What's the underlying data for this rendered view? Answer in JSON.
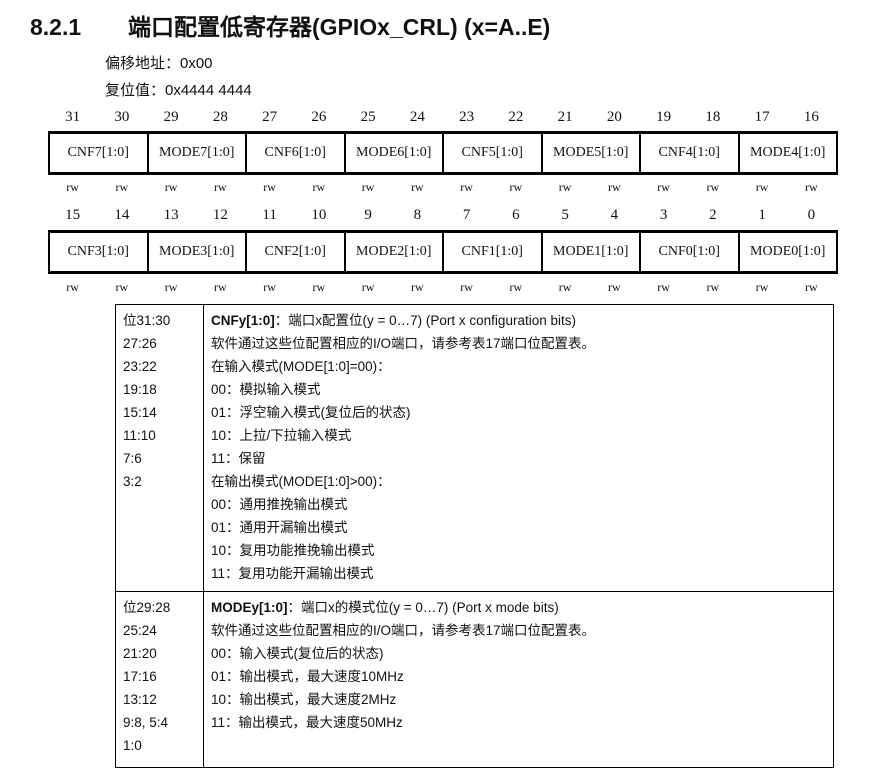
{
  "heading": {
    "number": "8.2.1",
    "title": "端口配置低寄存器(GPIOx_CRL) (x=A..E)"
  },
  "offset_label": "偏移地址：0x00",
  "reset_label": "复位值：0x4444 4444",
  "register": {
    "high": {
      "bits": [
        "31",
        "30",
        "29",
        "28",
        "27",
        "26",
        "25",
        "24",
        "23",
        "22",
        "21",
        "20",
        "19",
        "18",
        "17",
        "16"
      ],
      "fields": [
        "CNF7[1:0]",
        "MODE7[1:0]",
        "CNF6[1:0]",
        "MODE6[1:0]",
        "CNF5[1:0]",
        "MODE5[1:0]",
        "CNF4[1:0]",
        "MODE4[1:0]"
      ],
      "access": [
        "rw",
        "rw",
        "rw",
        "rw",
        "rw",
        "rw",
        "rw",
        "rw",
        "rw",
        "rw",
        "rw",
        "rw",
        "rw",
        "rw",
        "rw",
        "rw"
      ]
    },
    "low": {
      "bits": [
        "15",
        "14",
        "13",
        "12",
        "11",
        "10",
        "9",
        "8",
        "7",
        "6",
        "5",
        "4",
        "3",
        "2",
        "1",
        "0"
      ],
      "fields": [
        "CNF3[1:0]",
        "MODE3[1:0]",
        "CNF2[1:0]",
        "MODE2[1:0]",
        "CNF1[1:0]",
        "MODE1[1:0]",
        "CNF0[1:0]",
        "MODE0[1:0]"
      ],
      "access": [
        "rw",
        "rw",
        "rw",
        "rw",
        "rw",
        "rw",
        "rw",
        "rw",
        "rw",
        "rw",
        "rw",
        "rw",
        "rw",
        "rw",
        "rw",
        "rw"
      ]
    }
  },
  "descriptions": [
    {
      "bits": [
        "位31:30",
        "27:26",
        "23:22",
        "19:18",
        "15:14",
        "11:10",
        "7:6",
        "3:2"
      ],
      "name": "CNFy[1:0]",
      "summary": "：端口x配置位(y = 0…7) (Port x configuration bits)",
      "lines": [
        "软件通过这些位配置相应的I/O端口，请参考表17端口位配置表。",
        "在输入模式(MODE[1:0]=00)：",
        "00：模拟输入模式",
        "01：浮空输入模式(复位后的状态)",
        "10：上拉/下拉输入模式",
        "11：保留",
        "在输出模式(MODE[1:0]>00)：",
        "00：通用推挽输出模式",
        "01：通用开漏输出模式",
        "10：复用功能推挽输出模式",
        "11：复用功能开漏输出模式"
      ]
    },
    {
      "bits": [
        "位29:28",
        "25:24",
        "21:20",
        "17:16",
        "13:12",
        "9:8, 5:4",
        "1:0"
      ],
      "name": "MODEy[1:0]",
      "summary": "：端口x的模式位(y = 0…7) (Port x mode bits)",
      "lines": [
        "软件通过这些位配置相应的I/O端口，请参考表17端口位配置表。",
        "00：输入模式(复位后的状态)",
        "01：输出模式，最大速度10MHz",
        "10：输出模式，最大速度2MHz",
        "11：输出模式，最大速度50MHz"
      ]
    }
  ]
}
